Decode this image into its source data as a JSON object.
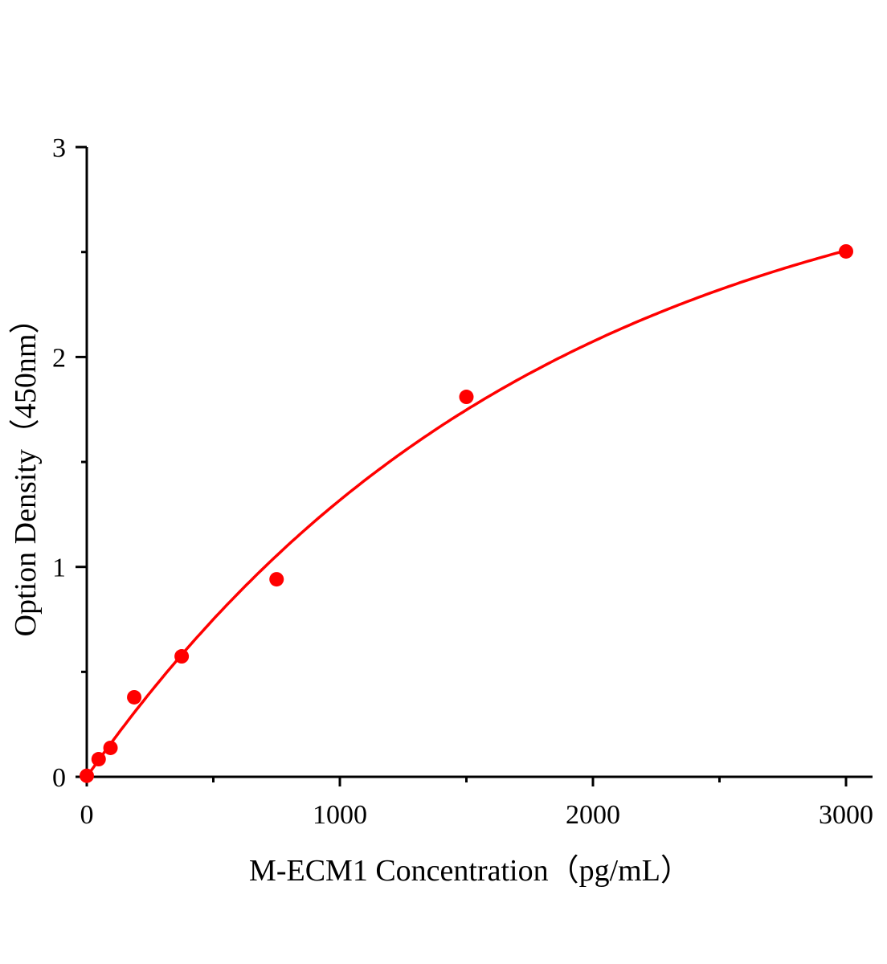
{
  "chart_data": {
    "type": "scatter",
    "title": "",
    "xlabel": "M-ECM1 Concentration（pg/mL）",
    "ylabel": "Option Density（450nm）",
    "xlim": [
      0,
      3100
    ],
    "ylim": [
      0,
      3
    ],
    "x_ticks": [
      "0",
      "1000",
      "2000",
      "3000"
    ],
    "y_ticks": [
      "0",
      "1",
      "2",
      "3"
    ],
    "grid": false,
    "legend": "none",
    "color": "#ff0000",
    "has_fit_curve": true,
    "series": [
      {
        "x": [
          0,
          46.875,
          93.75,
          187.5,
          375,
          750,
          1500,
          3000
        ],
        "y": [
          0.005,
          0.084,
          0.138,
          0.379,
          0.574,
          0.941,
          1.81,
          2.503
        ]
      }
    ]
  }
}
